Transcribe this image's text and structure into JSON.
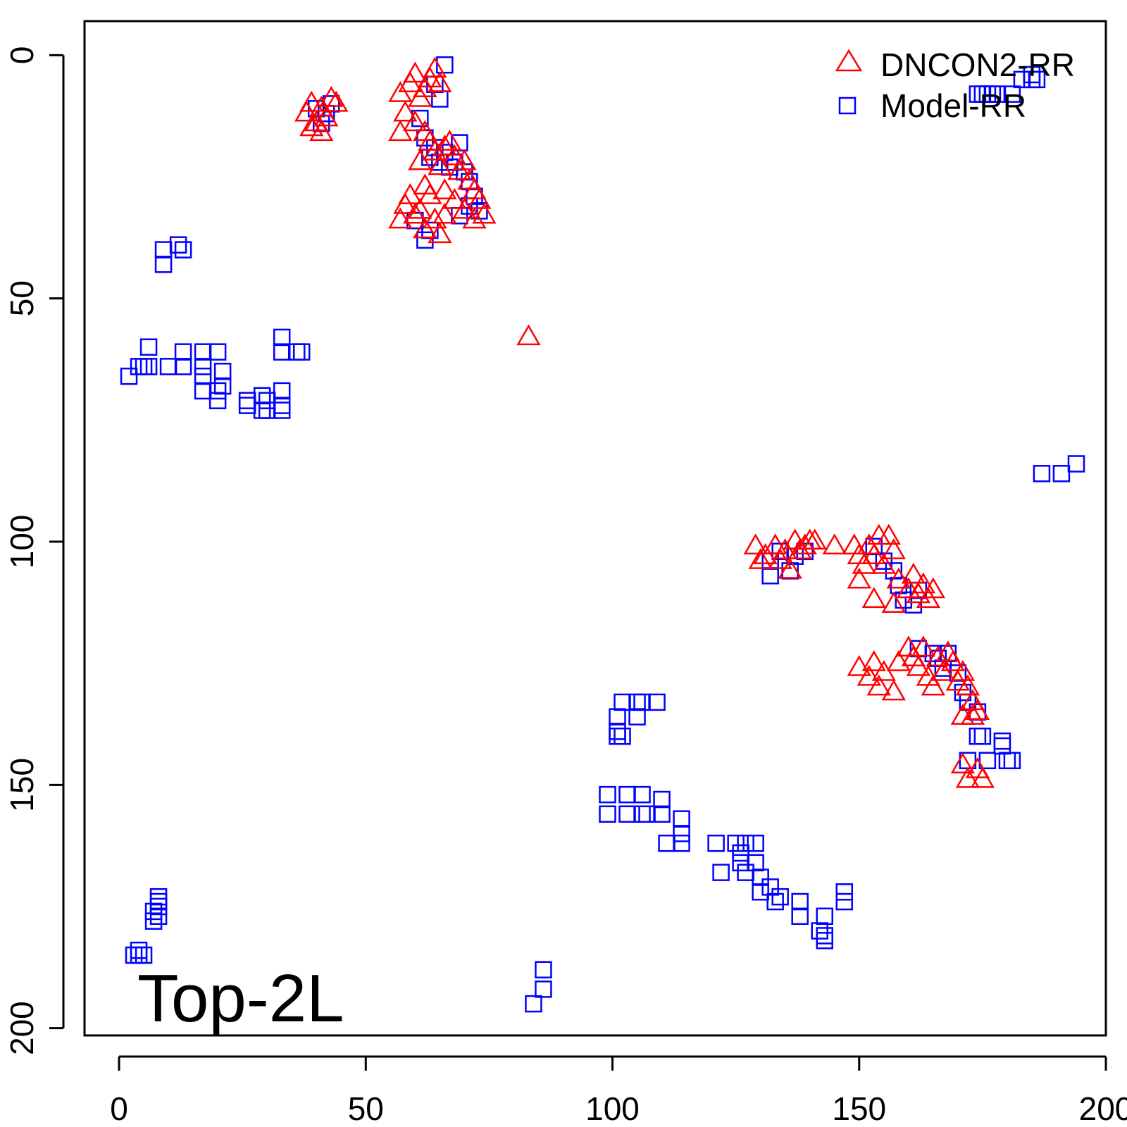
{
  "chart_data": {
    "type": "scatter",
    "annotation": "Top-2L",
    "legend_position": "top-right",
    "x_axis": {
      "range": [
        -7,
        200
      ],
      "ticks": [
        0,
        50,
        100,
        150,
        200
      ],
      "reversed": false
    },
    "y_axis": {
      "range": [
        -7,
        201.5
      ],
      "ticks": [
        0,
        50,
        100,
        150,
        200
      ],
      "reversed": true
    },
    "grid": false,
    "series": [
      {
        "name": "DNCON2-RR",
        "marker": "triangle",
        "color": "#ff0000",
        "points": [
          [
            38,
            12
          ],
          [
            39,
            10
          ],
          [
            40,
            14
          ],
          [
            41,
            11
          ],
          [
            42,
            13
          ],
          [
            43,
            9
          ],
          [
            44,
            10
          ],
          [
            39,
            15
          ],
          [
            41,
            16
          ],
          [
            57,
            8
          ],
          [
            58,
            12
          ],
          [
            59,
            6
          ],
          [
            60,
            4
          ],
          [
            61,
            9
          ],
          [
            62,
            7
          ],
          [
            63,
            5
          ],
          [
            64,
            3
          ],
          [
            65,
            6
          ],
          [
            60,
            14
          ],
          [
            62,
            16
          ],
          [
            63,
            18
          ],
          [
            64,
            20
          ],
          [
            61,
            22
          ],
          [
            65,
            23
          ],
          [
            66,
            19
          ],
          [
            57,
            16
          ],
          [
            67,
            18
          ],
          [
            68,
            21
          ],
          [
            69,
            24
          ],
          [
            70,
            22
          ],
          [
            71,
            26
          ],
          [
            72,
            28
          ],
          [
            73,
            30
          ],
          [
            70,
            32
          ],
          [
            72,
            34
          ],
          [
            74,
            33
          ],
          [
            68,
            30
          ],
          [
            66,
            28
          ],
          [
            57,
            34
          ],
          [
            58,
            31
          ],
          [
            59,
            29
          ],
          [
            60,
            33
          ],
          [
            61,
            32
          ],
          [
            62,
            36
          ],
          [
            63,
            29
          ],
          [
            64,
            34
          ],
          [
            65,
            37
          ],
          [
            66,
            33
          ],
          [
            62,
            27
          ],
          [
            83,
            58
          ],
          [
            129,
            101
          ],
          [
            130,
            104
          ],
          [
            131,
            103
          ],
          [
            133,
            101
          ],
          [
            134,
            104
          ],
          [
            135,
            102
          ],
          [
            136,
            106
          ],
          [
            137,
            100
          ],
          [
            138,
            102
          ],
          [
            139,
            101
          ],
          [
            140,
            100
          ],
          [
            141,
            100
          ],
          [
            145,
            101
          ],
          [
            149,
            101
          ],
          [
            150,
            103
          ],
          [
            151,
            105
          ],
          [
            152,
            101
          ],
          [
            153,
            103
          ],
          [
            154,
            99
          ],
          [
            155,
            105
          ],
          [
            156,
            99
          ],
          [
            157,
            102
          ],
          [
            158,
            108
          ],
          [
            160,
            110
          ],
          [
            161,
            107
          ],
          [
            162,
            111
          ],
          [
            163,
            109
          ],
          [
            164,
            112
          ],
          [
            165,
            110
          ],
          [
            150,
            108
          ],
          [
            153,
            112
          ],
          [
            157,
            113
          ],
          [
            150,
            126
          ],
          [
            152,
            128
          ],
          [
            153,
            125
          ],
          [
            154,
            130
          ],
          [
            155,
            127
          ],
          [
            157,
            131
          ],
          [
            158,
            125
          ],
          [
            160,
            122
          ],
          [
            161,
            124
          ],
          [
            162,
            126
          ],
          [
            163,
            122
          ],
          [
            164,
            128
          ],
          [
            165,
            130
          ],
          [
            166,
            124
          ],
          [
            167,
            127
          ],
          [
            168,
            123
          ],
          [
            169,
            125
          ],
          [
            170,
            129
          ],
          [
            171,
            127
          ],
          [
            172,
            130
          ],
          [
            173,
            133
          ],
          [
            174,
            135
          ],
          [
            171,
            136
          ],
          [
            173,
            136
          ],
          [
            171,
            146
          ],
          [
            172,
            149
          ],
          [
            174,
            147
          ],
          [
            175,
            149
          ]
        ]
      },
      {
        "name": "Model-RR",
        "marker": "square",
        "color": "#0000ff",
        "points": [
          [
            66,
            2
          ],
          [
            64,
            6
          ],
          [
            65,
            9
          ],
          [
            40,
            11
          ],
          [
            41,
            14
          ],
          [
            42,
            12
          ],
          [
            43,
            10
          ],
          [
            61,
            13
          ],
          [
            62,
            17
          ],
          [
            63,
            21
          ],
          [
            64,
            19
          ],
          [
            65,
            22
          ],
          [
            66,
            20
          ],
          [
            67,
            23
          ],
          [
            68,
            22
          ],
          [
            69,
            18
          ],
          [
            70,
            24
          ],
          [
            71,
            26
          ],
          [
            72,
            29
          ],
          [
            73,
            32
          ],
          [
            71,
            31
          ],
          [
            69,
            33
          ],
          [
            63,
            36
          ],
          [
            60,
            34
          ],
          [
            62,
            38
          ],
          [
            9,
            40
          ],
          [
            9,
            43
          ],
          [
            12,
            39
          ],
          [
            13,
            40
          ],
          [
            6,
            60
          ],
          [
            4,
            64
          ],
          [
            5,
            64
          ],
          [
            6,
            64
          ],
          [
            10,
            64
          ],
          [
            13,
            61
          ],
          [
            13,
            64
          ],
          [
            17,
            61
          ],
          [
            17,
            64
          ],
          [
            20,
            61
          ],
          [
            17,
            66
          ],
          [
            21,
            65
          ],
          [
            17,
            69
          ],
          [
            20,
            69
          ],
          [
            21,
            68
          ],
          [
            20,
            71
          ],
          [
            2,
            66
          ],
          [
            26,
            71
          ],
          [
            29,
            70
          ],
          [
            30,
            71
          ],
          [
            33,
            69
          ],
          [
            26,
            72
          ],
          [
            29,
            73
          ],
          [
            30,
            73
          ],
          [
            33,
            72
          ],
          [
            33,
            73
          ],
          [
            33,
            58
          ],
          [
            33,
            61
          ],
          [
            36,
            61
          ],
          [
            37,
            61
          ],
          [
            3,
            185
          ],
          [
            4,
            185
          ],
          [
            4,
            184
          ],
          [
            5,
            185
          ],
          [
            8,
            173
          ],
          [
            8,
            174
          ],
          [
            8,
            175
          ],
          [
            8,
            177
          ],
          [
            7,
            176
          ],
          [
            7,
            178
          ],
          [
            86,
            188
          ],
          [
            86,
            192
          ],
          [
            84,
            195
          ],
          [
            101,
            136
          ],
          [
            101,
            139
          ],
          [
            101,
            140
          ],
          [
            102,
            133
          ],
          [
            102,
            140
          ],
          [
            105,
            133
          ],
          [
            105,
            136
          ],
          [
            106,
            133
          ],
          [
            109,
            133
          ],
          [
            99,
            152
          ],
          [
            99,
            156
          ],
          [
            103,
            152
          ],
          [
            103,
            156
          ],
          [
            106,
            152
          ],
          [
            106,
            156
          ],
          [
            107,
            156
          ],
          [
            110,
            153
          ],
          [
            110,
            156
          ],
          [
            114,
            157
          ],
          [
            114,
            160
          ],
          [
            114,
            162
          ],
          [
            111,
            162
          ],
          [
            121,
            162
          ],
          [
            122,
            168
          ],
          [
            125,
            162
          ],
          [
            126,
            164
          ],
          [
            126,
            166
          ],
          [
            127,
            162
          ],
          [
            129,
            162
          ],
          [
            129,
            166
          ],
          [
            127,
            168
          ],
          [
            130,
            169
          ],
          [
            130,
            172
          ],
          [
            132,
            171
          ],
          [
            133,
            174
          ],
          [
            134,
            173
          ],
          [
            138,
            174
          ],
          [
            138,
            177
          ],
          [
            143,
            177
          ],
          [
            143,
            181
          ],
          [
            142,
            180
          ],
          [
            143,
            182
          ],
          [
            147,
            172
          ],
          [
            147,
            174
          ],
          [
            132,
            104
          ],
          [
            132,
            107
          ],
          [
            134,
            102
          ],
          [
            136,
            106
          ],
          [
            137,
            103
          ],
          [
            139,
            102
          ],
          [
            153,
            101
          ],
          [
            155,
            104
          ],
          [
            157,
            106
          ],
          [
            158,
            109
          ],
          [
            159,
            112
          ],
          [
            161,
            113
          ],
          [
            162,
            110
          ],
          [
            162,
            122
          ],
          [
            165,
            123
          ],
          [
            166,
            124
          ],
          [
            167,
            126
          ],
          [
            168,
            123
          ],
          [
            170,
            127
          ],
          [
            171,
            131
          ],
          [
            172,
            133
          ],
          [
            174,
            135
          ],
          [
            172,
            145
          ],
          [
            174,
            140
          ],
          [
            175,
            140
          ],
          [
            176,
            145
          ],
          [
            179,
            141
          ],
          [
            179,
            142
          ],
          [
            180,
            145
          ],
          [
            181,
            145
          ],
          [
            174,
            8
          ],
          [
            175,
            8
          ],
          [
            176,
            8
          ],
          [
            177,
            8
          ],
          [
            178,
            8
          ],
          [
            181,
            8
          ],
          [
            183,
            5
          ],
          [
            185,
            4
          ],
          [
            185,
            5
          ],
          [
            186,
            5
          ],
          [
            187,
            86
          ],
          [
            191,
            86
          ],
          [
            194,
            84
          ]
        ]
      }
    ]
  }
}
